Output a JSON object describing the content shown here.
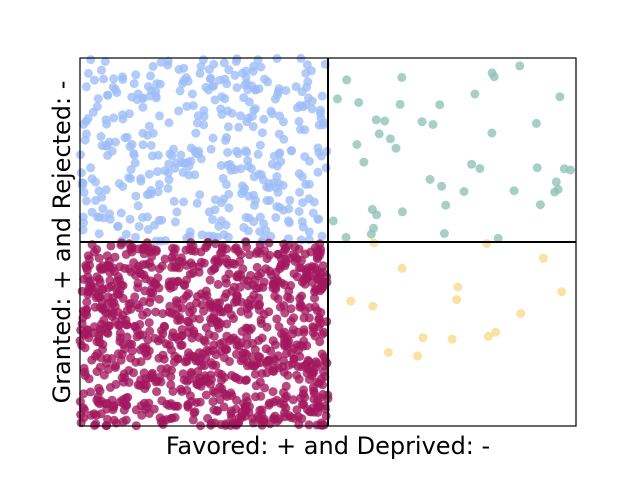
{
  "chart_data": {
    "type": "scatter",
    "xlabel": "Favored: + and Deprived: -",
    "ylabel": "Granted: + and Rejected: -",
    "xlim": [
      0,
      1
    ],
    "ylim": [
      0,
      1
    ],
    "x_split": 0.5,
    "y_split": 0.5,
    "quadrants": [
      {
        "position": "top-left",
        "color": "#9ebcf7",
        "point_count": 400,
        "x_range": [
          0.0,
          0.5
        ],
        "y_range": [
          0.5,
          1.0
        ]
      },
      {
        "position": "top-right",
        "color": "#8fc1b5",
        "point_count": 45,
        "x_range": [
          0.5,
          1.0
        ],
        "y_range": [
          0.5,
          1.0
        ]
      },
      {
        "position": "bottom-left",
        "color": "#a3175d",
        "point_count": 1000,
        "x_range": [
          0.0,
          0.5
        ],
        "y_range": [
          0.0,
          0.5
        ]
      },
      {
        "position": "bottom-right",
        "color": "#f8d98a",
        "point_count": 16,
        "x_range": [
          0.5,
          1.0
        ],
        "y_range": [
          0.0,
          0.5
        ]
      }
    ],
    "grid": false,
    "ticks": false,
    "legend": "none"
  }
}
